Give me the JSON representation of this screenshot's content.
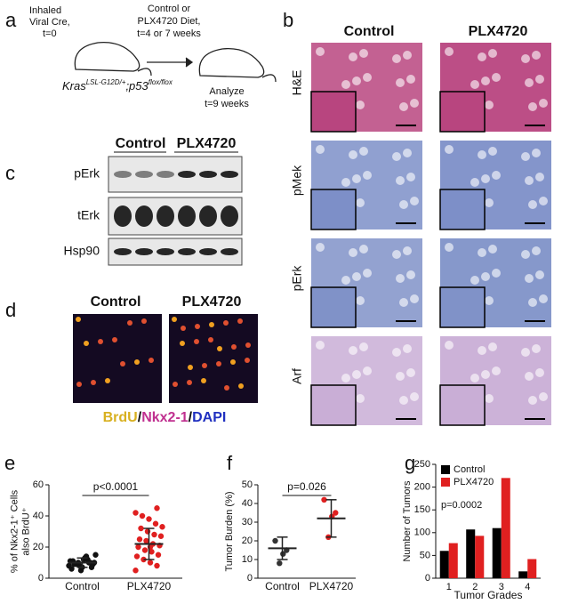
{
  "panels": {
    "a": {
      "label": "a",
      "start": "Inhaled",
      "start2": "Viral Cre,",
      "start_time": "t=0",
      "diet": "Control or",
      "diet2": "PLX4720 Diet,",
      "diet_time": "t=4 or 7 weeks",
      "gene1": "Kras",
      "gene1_sup": "LSL-G12D/+",
      "gene2": ";p53",
      "gene2_sup": "flox/flox",
      "end": "Analyze",
      "end_time": "t=9 weeks"
    },
    "b": {
      "label": "b",
      "columns": [
        "Control",
        "PLX4720"
      ],
      "rows": [
        "H&E",
        "pMek",
        "pErk",
        "Arf"
      ]
    },
    "c": {
      "label": "c",
      "columns": [
        "Control",
        "PLX4720"
      ],
      "rows": [
        "pErk",
        "tErk",
        "Hsp90"
      ]
    },
    "d": {
      "label": "d",
      "columns": [
        "Control",
        "PLX4720"
      ],
      "stain": [
        "BrdU",
        "/",
        "Nkx2-1",
        "/",
        "DAPI"
      ]
    }
  },
  "chart_data": [
    {
      "type": "dot",
      "label": "e",
      "ylabel": [
        "% of Nkx2-1⁺ Cells",
        "also BrdU⁺"
      ],
      "categories": [
        "Control",
        "PLX4720"
      ],
      "colors": [
        "#111111",
        "#e02020"
      ],
      "points": [
        [
          8,
          10,
          12,
          9,
          11,
          7,
          13,
          10,
          6,
          9,
          14,
          8,
          11,
          10,
          12,
          5,
          9,
          15,
          10,
          7
        ],
        [
          5,
          8,
          10,
          12,
          14,
          15,
          17,
          18,
          20,
          21,
          22,
          24,
          25,
          27,
          28,
          30,
          32,
          33,
          35,
          38,
          40,
          42,
          45,
          20
        ]
      ],
      "means": [
        10,
        22
      ],
      "errors": [
        3,
        10
      ],
      "ylim": [
        0,
        60
      ],
      "yticks": [
        0,
        20,
        40,
        60
      ],
      "annotation": "p<0.0001"
    },
    {
      "type": "dot",
      "label": "f",
      "ylabel": [
        "Tumor Burden (%)"
      ],
      "categories": [
        "Control",
        "PLX4720"
      ],
      "colors": [
        "#333333",
        "#e02020"
      ],
      "points": [
        [
          20,
          15,
          13,
          8
        ],
        [
          42,
          35,
          33,
          22
        ]
      ],
      "means": [
        16,
        32
      ],
      "errors": [
        6,
        10
      ],
      "ylim": [
        0,
        50
      ],
      "yticks": [
        0,
        10,
        20,
        30,
        40,
        50
      ],
      "annotation": "p=0.026"
    },
    {
      "type": "bar",
      "label": "g",
      "ylabel": [
        "Number of Tumors"
      ],
      "xlabel": "Tumor Grades",
      "categories": [
        "1",
        "2",
        "3",
        "4"
      ],
      "series": [
        {
          "name": "Control",
          "color": "#000000",
          "values": [
            60,
            107,
            110,
            15
          ]
        },
        {
          "name": "PLX4720",
          "color": "#e02020",
          "values": [
            77,
            93,
            220,
            42
          ]
        }
      ],
      "ylim": [
        0,
        250
      ],
      "yticks": [
        0,
        50,
        100,
        150,
        200,
        250
      ],
      "legend": "upper left",
      "annotation": "p=0.0002"
    }
  ]
}
